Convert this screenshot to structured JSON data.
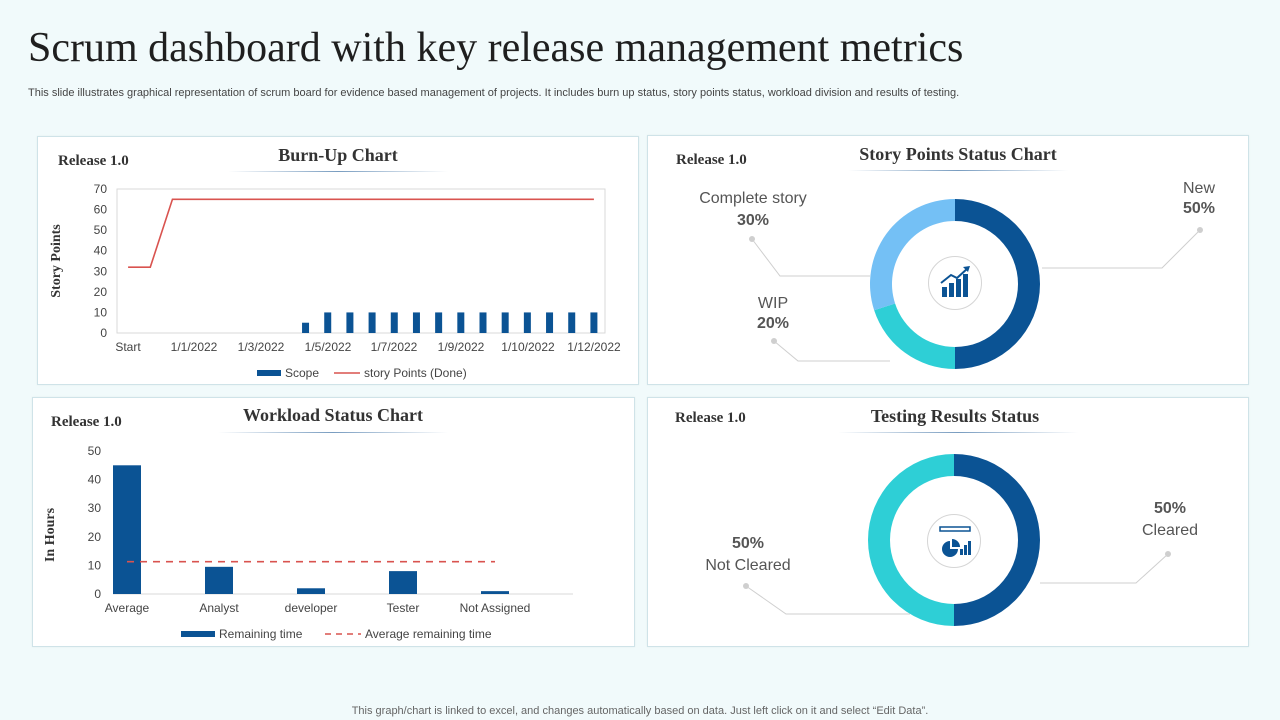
{
  "page": {
    "title": "Scrum dashboard with key release management metrics",
    "subtitle": "This slide illustrates graphical representation of scrum board for evidence based management of projects. It includes burn up status, story points status, workload division and results of testing.",
    "footer": "This graph/chart is linked to excel, and changes automatically based on data. Just left click on it and select “Edit Data”."
  },
  "colors": {
    "dark_blue": "#0b5394",
    "line_red": "#d9534f",
    "light_blue": "#74c0f5",
    "cyan": "#2ecfd6"
  },
  "chart_data": [
    {
      "id": "burnup",
      "type": "bar",
      "release": "Release 1.0",
      "title": "Burn-Up Chart",
      "ylabel": "Story Points",
      "ylim": [
        0,
        70
      ],
      "yticks": [
        "0",
        "10",
        "20",
        "30",
        "40",
        "50",
        "60",
        "70"
      ],
      "xtick_labels": [
        "Start",
        "1/1/2022",
        "1/3/2022",
        "1/5/2022",
        "1/7/2022",
        "1/9/2022",
        "1/10/2022",
        "1/12/2022"
      ],
      "series": [
        {
          "name": "Scope",
          "kind": "bar",
          "values": [
            0,
            0,
            0,
            0,
            0,
            0,
            0,
            0,
            5,
            10,
            10,
            10,
            10,
            10,
            10,
            10,
            10,
            10,
            10,
            10,
            10,
            10
          ]
        },
        {
          "name": "story Points (Done)",
          "kind": "line",
          "values": [
            32,
            32,
            65,
            65,
            65,
            65,
            65,
            65,
            65,
            65,
            65,
            65,
            65,
            65,
            65,
            65,
            65,
            65,
            65,
            65,
            65,
            65
          ]
        }
      ]
    },
    {
      "id": "story_points",
      "type": "pie",
      "release": "Release 1.0",
      "title": "Story Points Status Chart",
      "slices": [
        {
          "label": "New",
          "pct": "50%",
          "value": 50,
          "color": "#0b5394"
        },
        {
          "label": "WIP",
          "pct": "20%",
          "value": 20,
          "color": "#2ecfd6"
        },
        {
          "label": "Complete story",
          "pct": "30%",
          "value": 30,
          "color": "#74c0f5"
        }
      ]
    },
    {
      "id": "workload",
      "type": "bar",
      "release": "Release 1.0",
      "title": "Workload Status Chart",
      "ylabel": "In Hours",
      "ylim": [
        0,
        50
      ],
      "yticks": [
        "0",
        "10",
        "20",
        "30",
        "40",
        "50"
      ],
      "categories": [
        "Average",
        "Analyst",
        "developer",
        "Tester",
        "Not Assigned"
      ],
      "series": [
        {
          "name": "Remaining time",
          "kind": "bar",
          "values": [
            45,
            9.5,
            2,
            8,
            1
          ]
        },
        {
          "name": "Average remaining time",
          "kind": "dashed-line",
          "values": [
            11.3,
            11.3,
            11.3,
            11.3,
            11.3
          ]
        }
      ]
    },
    {
      "id": "testing",
      "type": "pie",
      "release": "Release 1.0",
      "title": "Testing Results Status",
      "slices": [
        {
          "label": "Cleared",
          "pct": "50%",
          "value": 50,
          "color": "#0b5394"
        },
        {
          "label": "Not Cleared",
          "pct": "50%",
          "value": 50,
          "color": "#2ecfd6"
        }
      ]
    }
  ]
}
